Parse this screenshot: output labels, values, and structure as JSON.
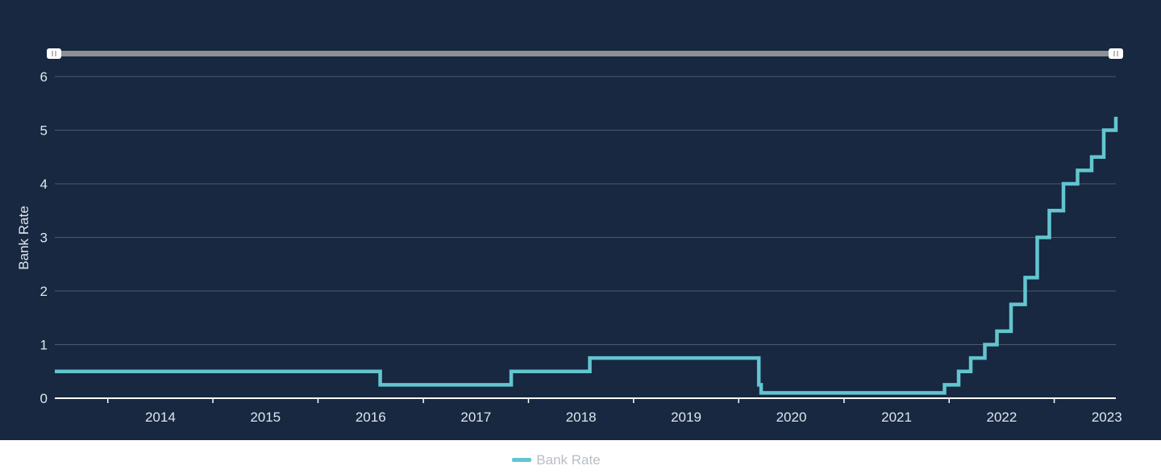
{
  "chart_data": {
    "type": "line",
    "step": true,
    "ylabel": "Bank Rate",
    "ylim": [
      0,
      6
    ],
    "yticks": [
      "0",
      "1",
      "2",
      "3",
      "4",
      "5",
      "6"
    ],
    "xlim": [
      "2013-07-01",
      "2023-08-03"
    ],
    "xtick_labels": [
      "2014",
      "2015",
      "2016",
      "2017",
      "2018",
      "2019",
      "2020",
      "2021",
      "2022",
      "2023"
    ],
    "grid": true,
    "legend": "bottom-center",
    "line_color": "#63c5cf",
    "series": [
      {
        "name": "Bank Rate",
        "points": [
          [
            "2013-07-01",
            0.5
          ],
          [
            "2016-08-04",
            0.25
          ],
          [
            "2017-11-02",
            0.5
          ],
          [
            "2018-08-02",
            0.75
          ],
          [
            "2020-03-11",
            0.25
          ],
          [
            "2020-03-19",
            0.1
          ],
          [
            "2021-12-16",
            0.25
          ],
          [
            "2022-02-03",
            0.5
          ],
          [
            "2022-03-17",
            0.75
          ],
          [
            "2022-05-05",
            1.0
          ],
          [
            "2022-06-16",
            1.25
          ],
          [
            "2022-08-04",
            1.75
          ],
          [
            "2022-09-22",
            2.25
          ],
          [
            "2022-11-03",
            3.0
          ],
          [
            "2022-12-15",
            3.5
          ],
          [
            "2023-02-02",
            4.0
          ],
          [
            "2023-03-23",
            4.25
          ],
          [
            "2023-05-11",
            4.5
          ],
          [
            "2023-06-22",
            5.0
          ],
          [
            "2023-08-03",
            5.25
          ]
        ]
      }
    ]
  },
  "legend": {
    "label": "Bank Rate"
  }
}
